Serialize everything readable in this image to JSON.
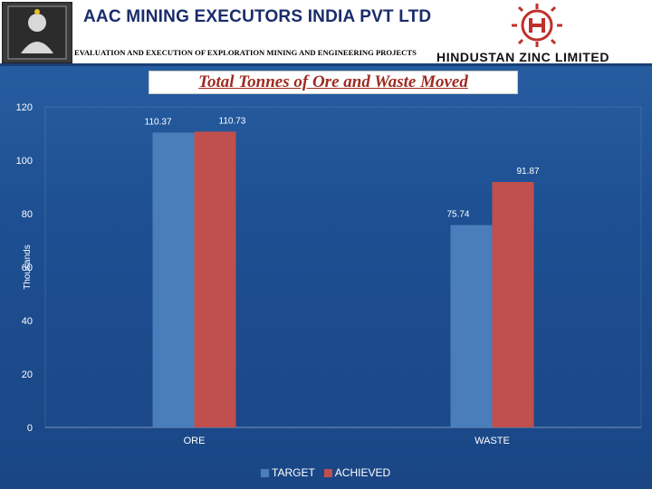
{
  "header": {
    "company": "AAC MINING EXECUTORS INDIA PVT LTD",
    "tagline": "EVALUATION AND EXECUTION OF EXPLORATION MINING AND ENGINEERING PROJECTS",
    "partner": "HINDUSTAN ZINC LIMITED"
  },
  "chart_data": {
    "type": "bar",
    "title": "Total Tonnes of Ore and Waste Moved",
    "xlabel": "",
    "ylabel": "Thousands",
    "categories": [
      "ORE",
      "WASTE"
    ],
    "series": [
      {
        "name": "TARGET",
        "values": [
          110.37,
          75.74
        ],
        "labels": [
          "110.37",
          "75.74"
        ],
        "color": "#4a7ebb"
      },
      {
        "name": "ACHIEVED",
        "values": [
          110.73,
          91.87
        ],
        "labels": [
          "110.73",
          "91.87"
        ],
        "color": "#c0504d"
      }
    ],
    "ylim": [
      0,
      120
    ],
    "yticks": [
      "0",
      "20",
      "40",
      "60",
      "80",
      "100",
      "120"
    ],
    "grid": false,
    "legend": "bottom"
  },
  "colors": {
    "background": "#1f4e8f",
    "title": "#9e2b22",
    "company": "#1a2c6b",
    "hzl_logo": "#c0302a"
  }
}
